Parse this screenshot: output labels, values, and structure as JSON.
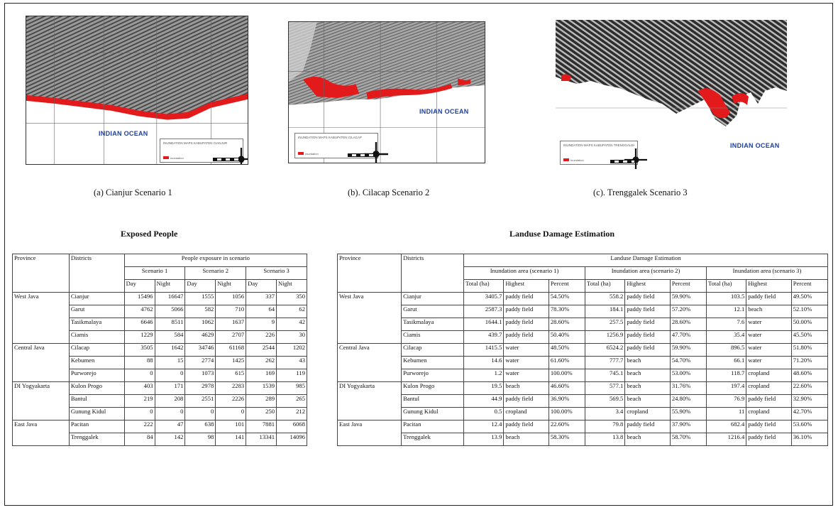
{
  "maps": [
    {
      "caption": "(a) Cianjur Scenario 1",
      "ocean_label": "INDIAN OCEAN",
      "legend_title": "INUNDATION MAPS KABUPATEN CIANJUR",
      "legend_key": "Inundation"
    },
    {
      "caption": "(b). Cilacap Scenario 2",
      "ocean_label": "INDIAN OCEAN",
      "legend_title": "INUNDATION MAPS KABUPATEN CILACAP",
      "legend_key": "Inundation"
    },
    {
      "caption": "(c).  Trenggalek Scenario 3",
      "ocean_label": "INDIAN OCEAN",
      "legend_title": "INUNDATION MAPS KABUPATEN TRENGGALEK",
      "legend_key": "Inundation"
    }
  ],
  "colors": {
    "land": "#8c8c8c",
    "land_dark": "#3a3a3a",
    "inundation": "#e31a1c",
    "ocean_text": "#1f3f9a"
  },
  "exposed": {
    "title": "Exposed People",
    "h_province": "Province",
    "h_districts": "Districts",
    "h_group": "People exposure in scenario",
    "scenarios": [
      "Scenario 1",
      "Scenario 2",
      "Scenario 3"
    ],
    "day": "Day",
    "night": "Night",
    "provinces": [
      {
        "name": "West Java",
        "rows": [
          {
            "district": "Cianjur",
            "v": [
              "15496",
              "16647",
              "1555",
              "1056",
              "337",
              "350"
            ]
          },
          {
            "district": "Garut",
            "v": [
              "4762",
              "5066",
              "582",
              "710",
              "64",
              "62"
            ]
          },
          {
            "district": "Tasikmalaya",
            "v": [
              "6646",
              "8511",
              "1062",
              "1637",
              "9",
              "42"
            ]
          },
          {
            "district": "Ciamis",
            "v": [
              "1229",
              "584",
              "4629",
              "2707",
              "226",
              "30"
            ]
          }
        ]
      },
      {
        "name": "Central Java",
        "rows": [
          {
            "district": "Cilacap",
            "v": [
              "3505",
              "1642",
              "34746",
              "61168",
              "2544",
              "1202"
            ]
          },
          {
            "district": "Kebumen",
            "v": [
              "88",
              "15",
              "2774",
              "1425",
              "262",
              "43"
            ]
          },
          {
            "district": "Purworejo",
            "v": [
              "0",
              "0",
              "1073",
              "615",
              "169",
              "119"
            ]
          }
        ]
      },
      {
        "name": "DI Yogyakarta",
        "rows": [
          {
            "district": "Kulon Progo",
            "v": [
              "403",
              "171",
              "2978",
              "2283",
              "1539",
              "985"
            ]
          },
          {
            "district": "Bantul",
            "v": [
              "219",
              "208",
              "2551",
              "2226",
              "289",
              "265"
            ]
          },
          {
            "district": "Gunung Kidul",
            "v": [
              "0",
              "0",
              "0",
              "0",
              "250",
              "212"
            ]
          }
        ]
      },
      {
        "name": "East Java",
        "rows": [
          {
            "district": "Pacitan",
            "v": [
              "222",
              "47",
              "638",
              "101",
              "7881",
              "6068"
            ]
          },
          {
            "district": "Trenggalek",
            "v": [
              "84",
              "142",
              "98",
              "141",
              "13341",
              "14096"
            ]
          }
        ]
      }
    ]
  },
  "landuse": {
    "title": "Landuse Damage Estimation",
    "h_province": "Province",
    "h_districts": "Districts",
    "h_group": "Landuse Damage Estimation",
    "scenarios": [
      "Inundation area (scenario 1)",
      "Inundation area (scenario 2)",
      "Inundation area (scenario 3)"
    ],
    "h_total": "Total (ha)",
    "h_highest": "Highest",
    "h_percent": "Percent",
    "provinces": [
      {
        "name": "West Java",
        "rows": [
          {
            "district": "Cianjur",
            "v": [
              "3405.7",
              "paddy field",
              "54.50%",
              "558.2",
              "paddy field",
              "59.90%",
              "103.5",
              "paddy field",
              "49.50%"
            ]
          },
          {
            "district": "Garut",
            "v": [
              "2587.3",
              "paddy field",
              "78.30%",
              "184.1",
              "paddy field",
              "57.20%",
              "12.1",
              "beach",
              "52.10%"
            ]
          },
          {
            "district": "Tasikmalaya",
            "v": [
              "1644.1",
              "paddy field",
              "28.60%",
              "257.5",
              "paddy field",
              "28.60%",
              "7.6",
              "water",
              "50.00%"
            ]
          },
          {
            "district": "Ciamis",
            "v": [
              "439.7",
              "paddy field",
              "50.40%",
              "1256.9",
              "paddy field",
              "47.70%",
              "35.4",
              "water",
              "45.50%"
            ]
          }
        ]
      },
      {
        "name": "Central Java",
        "rows": [
          {
            "district": "Cilacap",
            "v": [
              "1415.5",
              "water",
              "48.50%",
              "6524.2",
              "paddy field",
              "59.90%",
              "896.5",
              "water",
              "51.80%"
            ]
          },
          {
            "district": "Kebumen",
            "v": [
              "14.6",
              "water",
              "61.60%",
              "777.7",
              "beach",
              "54.70%",
              "66.1",
              "water",
              "71.20%"
            ]
          },
          {
            "district": "Purworejo",
            "v": [
              "1.2",
              "water",
              "100.00%",
              "745.1",
              "beach",
              "53.00%",
              "118.7",
              "cropland",
              "48.60%"
            ]
          }
        ]
      },
      {
        "name": "DI Yogyakarta",
        "rows": [
          {
            "district": "Kulon Progo",
            "v": [
              "19.5",
              "beach",
              "46.60%",
              "577.1",
              "beach",
              "31.76%",
              "197.4",
              "cropland",
              "22.60%"
            ]
          },
          {
            "district": "Bantul",
            "v": [
              "44.9",
              "paddy field",
              "36.90%",
              "569.5",
              "beach",
              "24.80%",
              "76.9",
              "paddy field",
              "32.90%"
            ]
          },
          {
            "district": "Gunung Kidul",
            "v": [
              "0.5",
              "cropland",
              "100.00%",
              "3.4",
              "cropland",
              "55.90%",
              "11",
              "cropland",
              "42.70%"
            ]
          }
        ]
      },
      {
        "name": "East Java",
        "rows": [
          {
            "district": "Pacitan",
            "v": [
              "12.4",
              "paddy field",
              "22.60%",
              "79.8",
              "paddy field",
              "37.90%",
              "682.4",
              "paddy field",
              "53.60%"
            ]
          },
          {
            "district": "Trenggalek",
            "v": [
              "13.9",
              "beach",
              "58.30%",
              "13.8",
              "beach",
              "58.70%",
              "1216.4",
              "paddy field",
              "36.10%"
            ]
          }
        ]
      }
    ]
  }
}
